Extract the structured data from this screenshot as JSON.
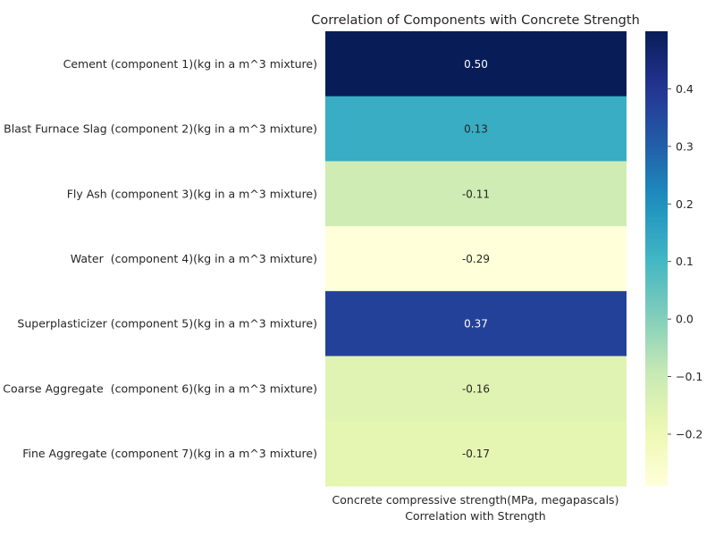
{
  "chart_data": {
    "type": "heatmap",
    "title": "Correlation of Components with Concrete Strength",
    "xlabel": "Correlation with Strength",
    "ylabel": "",
    "columns": [
      "Concrete compressive strength(MPa, megapascals)"
    ],
    "rows": [
      "Cement (component 1)(kg in a m^3 mixture)",
      "Blast Furnace Slag (component 2)(kg in a m^3 mixture)",
      "Fly Ash (component 3)(kg in a m^3 mixture)",
      "Water  (component 4)(kg in a m^3 mixture)",
      "Superplasticizer (component 5)(kg in a m^3 mixture)",
      "Coarse Aggregate  (component 6)(kg in a m^3 mixture)",
      "Fine Aggregate (component 7)(kg in a m^3 mixture)"
    ],
    "values": [
      0.5,
      0.13,
      -0.11,
      -0.29,
      0.37,
      -0.16,
      -0.17
    ],
    "value_labels": [
      "0.50",
      "0.13",
      "-0.11",
      "-0.29",
      "0.37",
      "-0.16",
      "-0.17"
    ],
    "colormap": "YlGnBu",
    "colorbar": {
      "vmin": -0.29,
      "vmax": 0.5,
      "ticks": [
        0.4,
        0.3,
        0.2,
        0.1,
        0.0,
        -0.1,
        -0.2
      ],
      "tick_labels": [
        "0.4",
        "0.3",
        "0.2",
        "0.1",
        "0.0",
        "−0.1",
        "−0.2"
      ]
    }
  }
}
